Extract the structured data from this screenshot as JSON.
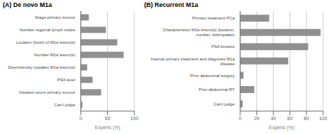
{
  "chart_data": [
    {
      "type": "bar",
      "orientation": "horizontal",
      "title": "(A)  De novo M1a",
      "categories": [
        "Stage primary tumour",
        "Number regional lymph nodes",
        "Location (level) of M1a lesion(s)",
        "Number M1a lesion(s)",
        "Size/intensity (uptake) M1a lesion(s)",
        "PSA level",
        "Gleason score primary tumour",
        "Can't judge"
      ],
      "values": [
        15,
        47,
        68,
        80,
        12,
        22,
        38,
        3
      ],
      "xlim": [
        0,
        100
      ],
      "xticks": [
        0,
        50,
        100
      ],
      "xlabel": "Experts (%)",
      "color": "#909090",
      "grid": true
    },
    {
      "type": "bar",
      "orientation": "horizontal",
      "title": "(B)  Recurrent M1a",
      "categories": [
        "Primary treatment PCa",
        "Characteristics M1a lesion(s) (location,\nnumber, size/uptake)",
        "PSA kinetics",
        "Interval primary treatment and diagnosis M1a\ndisease",
        "Prior abdominal surgery",
        "Prior abdominal RT",
        "Can't judge"
      ],
      "values": [
        35,
        97,
        82,
        58,
        4,
        17,
        3
      ],
      "xlim": [
        0,
        100
      ],
      "xticks": [
        0,
        20,
        40,
        60,
        80,
        100
      ],
      "xlabel": "Experts (%)",
      "color": "#909090",
      "grid": true
    }
  ]
}
